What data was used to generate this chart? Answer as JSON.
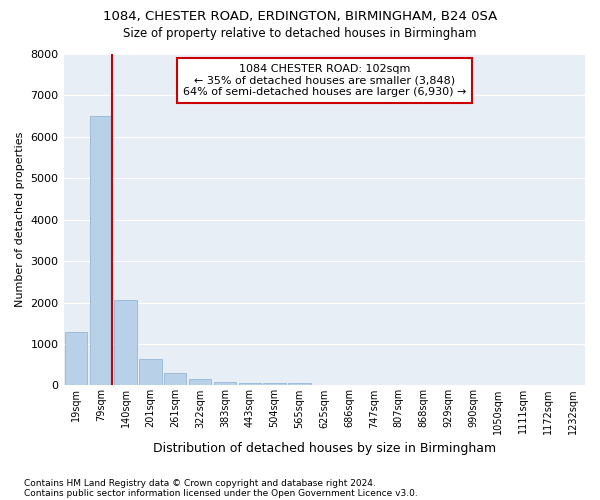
{
  "title1": "1084, CHESTER ROAD, ERDINGTON, BIRMINGHAM, B24 0SA",
  "title2": "Size of property relative to detached houses in Birmingham",
  "xlabel": "Distribution of detached houses by size in Birmingham",
  "ylabel": "Number of detached properties",
  "footnote1": "Contains HM Land Registry data © Crown copyright and database right 2024.",
  "footnote2": "Contains public sector information licensed under the Open Government Licence v3.0.",
  "annotation_title": "1084 CHESTER ROAD: 102sqm",
  "annotation_line1": "← 35% of detached houses are smaller (3,848)",
  "annotation_line2": "64% of semi-detached houses are larger (6,930) →",
  "bar_categories": [
    "19sqm",
    "79sqm",
    "140sqm",
    "201sqm",
    "261sqm",
    "322sqm",
    "383sqm",
    "443sqm",
    "504sqm",
    "565sqm",
    "625sqm",
    "686sqm",
    "747sqm",
    "807sqm",
    "868sqm",
    "929sqm",
    "990sqm",
    "1050sqm",
    "1111sqm",
    "1172sqm",
    "1232sqm"
  ],
  "bar_values": [
    1300,
    6500,
    2050,
    630,
    290,
    145,
    90,
    60,
    60,
    60,
    0,
    0,
    0,
    0,
    0,
    0,
    0,
    0,
    0,
    0,
    0
  ],
  "bar_color": "#b8d0e8",
  "bar_edge_color": "#8ab0ce",
  "vline_color": "#cc0000",
  "annotation_box_color": "#cc0000",
  "background_color": "#e8eef6",
  "ylim": [
    0,
    8000
  ],
  "yticks": [
    0,
    1000,
    2000,
    3000,
    4000,
    5000,
    6000,
    7000,
    8000
  ],
  "grid_color": "#ffffff"
}
